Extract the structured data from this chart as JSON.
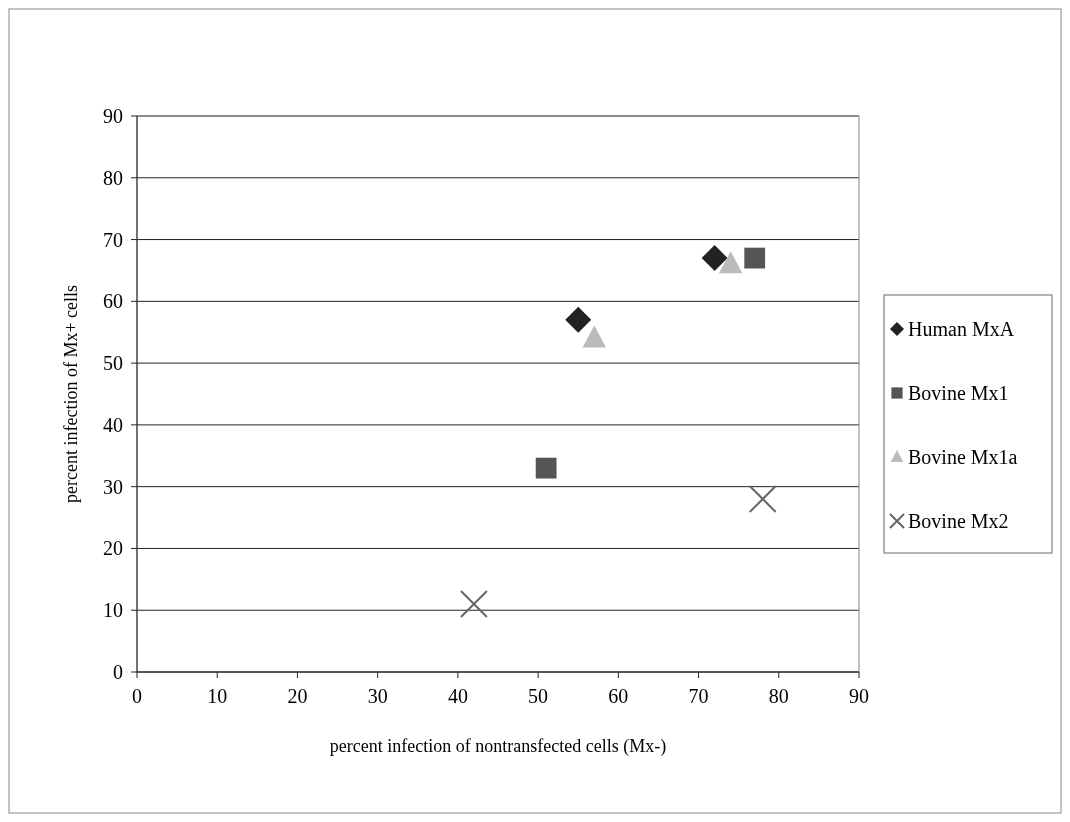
{
  "chart_data": {
    "type": "scatter",
    "xlabel": "percent infection of nontransfected cells (Mx-)",
    "ylabel": "percent infection of Mx+ cells",
    "xlim": [
      0,
      90
    ],
    "xticks": [
      0,
      10,
      20,
      30,
      40,
      50,
      60,
      70,
      80,
      90
    ],
    "ylim": [
      0,
      90
    ],
    "yticks": [
      0,
      10,
      20,
      30,
      40,
      50,
      60,
      70,
      80,
      90
    ],
    "grid": "y",
    "legend": "right",
    "series": [
      {
        "name": "Human MxA",
        "color": "#222222",
        "marker": "diamond",
        "x": [
          55,
          72
        ],
        "values": [
          57,
          67
        ]
      },
      {
        "name": "Bovine Mx1",
        "color": "#555555",
        "marker": "square",
        "x": [
          51,
          77
        ],
        "values": [
          33,
          67
        ]
      },
      {
        "name": "Bovine Mx1a",
        "color": "#bbbbbb",
        "marker": "triangle",
        "x": [
          57,
          74
        ],
        "values": [
          54,
          66
        ]
      },
      {
        "name": "Bovine Mx2",
        "color": "#666666",
        "marker": "cross",
        "x": [
          42,
          78
        ],
        "values": [
          11,
          28
        ]
      }
    ]
  }
}
